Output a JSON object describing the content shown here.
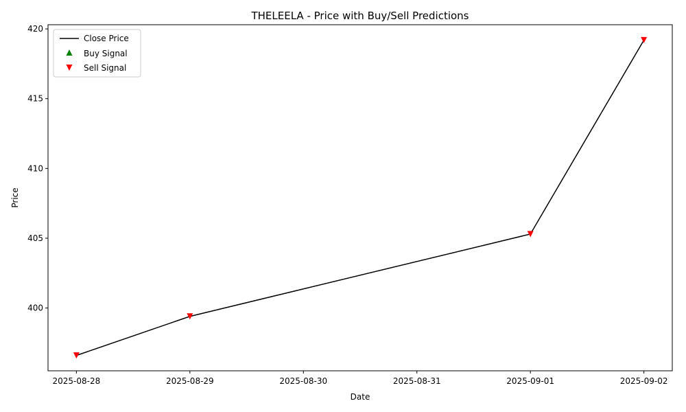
{
  "chart_data": {
    "type": "line",
    "title": "THELEELA - Price with Buy/Sell Predictions",
    "xlabel": "Date",
    "ylabel": "Price",
    "x_ticks": [
      "2025-08-28",
      "2025-08-29",
      "2025-08-30",
      "2025-08-31",
      "2025-09-01",
      "2025-09-02"
    ],
    "y_ticks": [
      400,
      405,
      410,
      415,
      420
    ],
    "xlim": [
      "2025-08-27 18:00",
      "2025-09-02 06:00"
    ],
    "ylim": [
      395.5,
      420.3
    ],
    "grid": false,
    "legend_position": "top-left",
    "series": [
      {
        "name": "Close Price",
        "kind": "line",
        "color": "#000000",
        "x": [
          "2025-08-28",
          "2025-08-29",
          "2025-09-01",
          "2025-09-02"
        ],
        "y": [
          396.6,
          399.4,
          405.3,
          419.2
        ]
      },
      {
        "name": "Buy Signal",
        "kind": "marker-up",
        "color": "#008000",
        "x": [],
        "y": []
      },
      {
        "name": "Sell Signal",
        "kind": "marker-down",
        "color": "#ff0000",
        "x": [
          "2025-08-28",
          "2025-08-29",
          "2025-09-01",
          "2025-09-02"
        ],
        "y": [
          396.6,
          399.4,
          405.3,
          419.2
        ]
      }
    ]
  }
}
